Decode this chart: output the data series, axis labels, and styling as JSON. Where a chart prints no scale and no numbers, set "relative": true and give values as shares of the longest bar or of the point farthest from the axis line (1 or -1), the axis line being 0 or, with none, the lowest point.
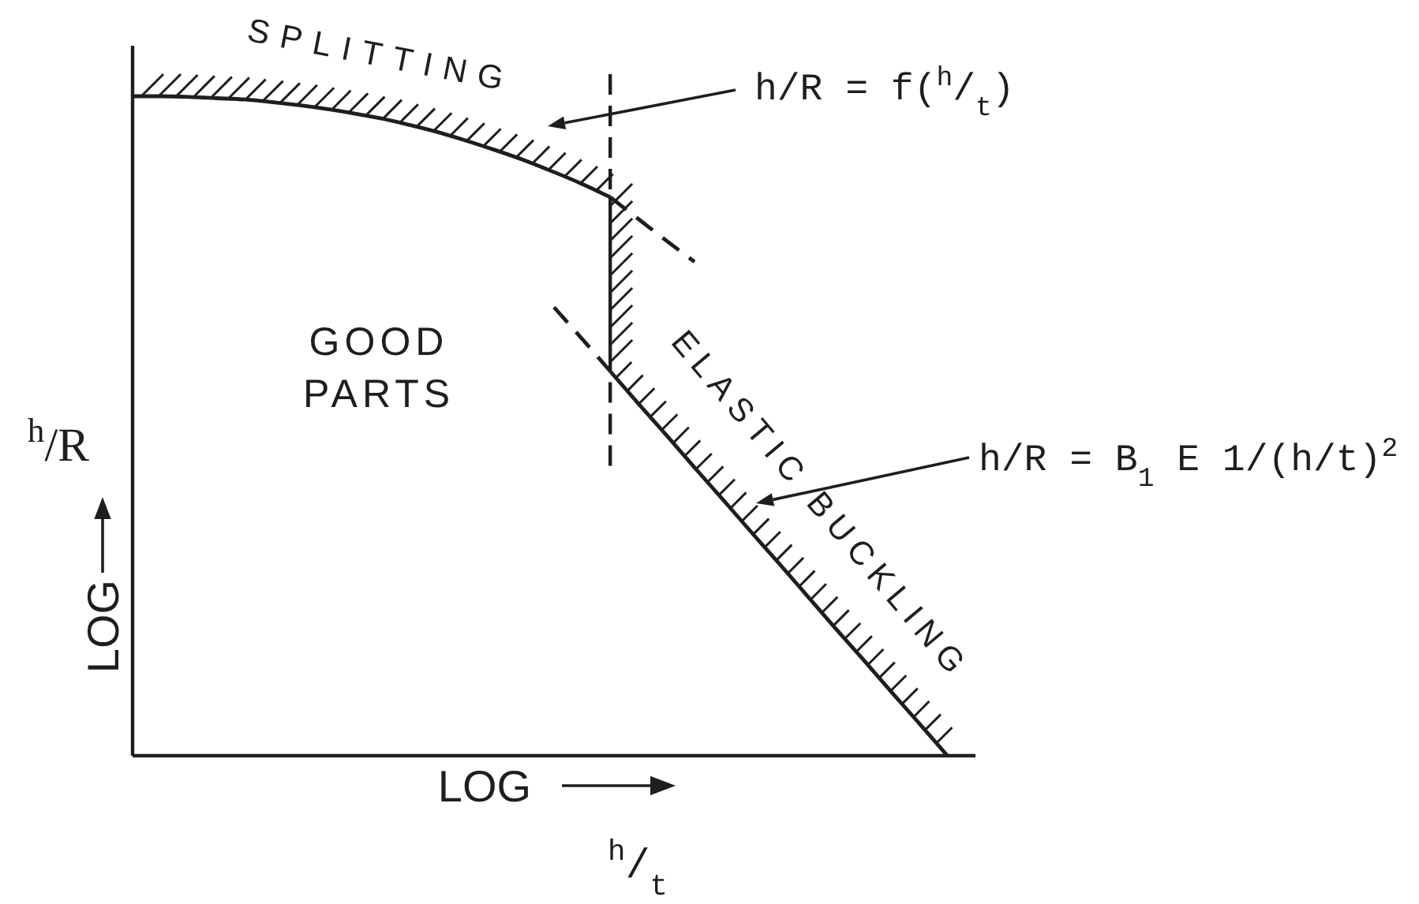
{
  "chart_data": {
    "type": "line",
    "relative": true,
    "xlabel": "$^{h}$/$_{t}$",
    "ylabel": "$^{h}$/R",
    "categories": [
      null,
      null,
      null,
      null,
      null,
      null,
      null,
      null,
      null,
      null,
      null,
      null,
      null,
      null,
      null,
      null,
      null,
      null,
      null,
      null,
      null,
      null,
      null,
      null,
      null,
      null,
      null,
      null,
      null,
      null,
      null
    ],
    "series": [
      {
        "color": "#1e1e1e",
        "values": [
          1,
          1,
          0.999,
          0.997,
          0.995,
          0.991,
          0.986,
          0.98,
          0.973,
          0.965,
          0.955,
          0.944,
          0.931,
          0.917,
          0.902,
          0.885,
          0.867,
          0.847,
          null,
          null,
          null,
          null,
          null,
          null,
          null,
          null,
          null,
          null,
          null,
          null,
          null
        ]
      },
      {
        "color": "#1e1e1e",
        "line_style": "dashed",
        "values": [
          null,
          null,
          null,
          null,
          null,
          null,
          null,
          null,
          null,
          null,
          null,
          null,
          null,
          null,
          null,
          null,
          null,
          0.847,
          0.814,
          0.781,
          0.749,
          null,
          null,
          null,
          null,
          null,
          null,
          null,
          null,
          null,
          null
        ]
      },
      {
        "color": "#1e1e1e",
        "values": [
          null,
          null,
          null,
          null,
          null,
          null,
          null,
          null,
          null,
          null,
          null,
          null,
          null,
          null,
          null,
          null,
          null,
          0.583,
          0.534,
          0.486,
          0.437,
          0.389,
          0.34,
          0.292,
          0.243,
          0.194,
          0.146,
          0.097,
          0.049,
          0,
          null
        ]
      },
      {
        "color": "#1e1e1e",
        "line_style": "dashed",
        "values": [
          null,
          null,
          null,
          null,
          null,
          null,
          null,
          null,
          null,
          null,
          null,
          null,
          null,
          null,
          null,
          0.68,
          0.632,
          0.583,
          null,
          null,
          null,
          null,
          null,
          null,
          null,
          null,
          null,
          null,
          null,
          null,
          null
        ]
      }
    ],
    "annotations": [
      "SPLITTING",
      "GOOD PARTS",
      "ELASTIC BUCKLING",
      "h/R = f($^{h}$/$_{t}$)",
      "h/R = B$_{1}$ E 1/(h/t)$^{2}$",
      "LOG",
      "LOG"
    ]
  }
}
